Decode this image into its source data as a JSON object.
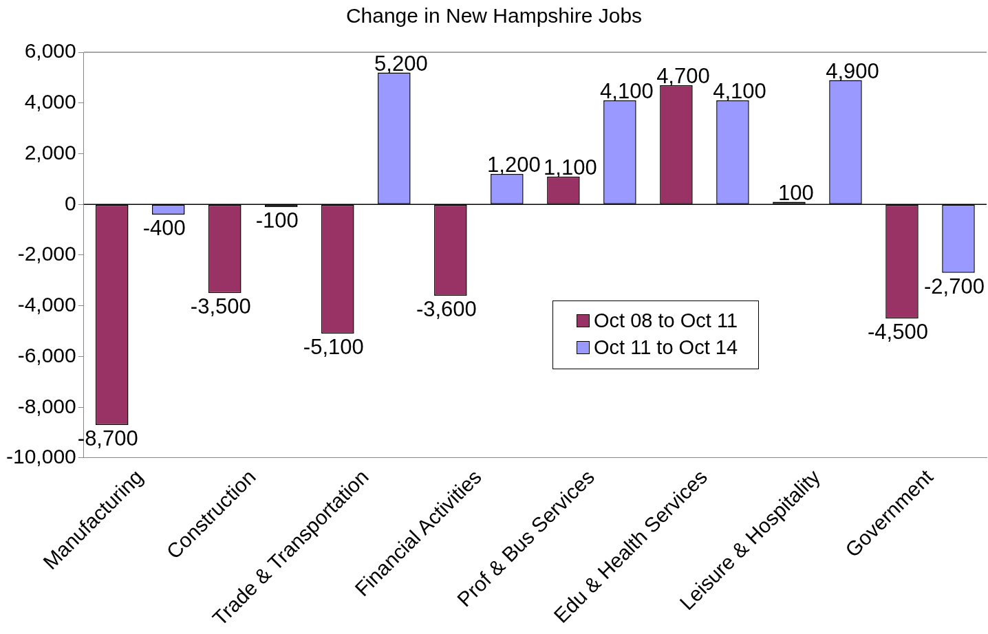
{
  "chart_data": {
    "type": "bar",
    "title": "Change in New Hampshire Jobs",
    "categories": [
      "Manufacturing",
      "Construction",
      "Trade & Transportation",
      "Financial Activities",
      "Prof & Bus Services",
      "Edu & Health Services",
      "Leisure & Hospitality",
      "Government"
    ],
    "series": [
      {
        "name": "Oct 08 to Oct 11",
        "color": "#993366",
        "values": [
          -8700,
          -3500,
          -5100,
          -3600,
          1100,
          4700,
          100,
          -4500
        ],
        "value_labels": [
          "-8,700",
          "-3,500",
          "-5,100",
          "-3,600",
          "1,100",
          "4,700",
          "100",
          "-4,500"
        ]
      },
      {
        "name": "Oct 11 to Oct 14",
        "color": "#9999ff",
        "values": [
          -400,
          -100,
          5200,
          1200,
          4100,
          4100,
          4900,
          -2700
        ],
        "value_labels": [
          "-400",
          "-100",
          "5,200",
          "1,200",
          "4,100",
          "4,100",
          "4,900",
          "-2,700"
        ]
      }
    ],
    "ylim": [
      -10000,
      6000
    ],
    "yticks": [
      {
        "value": -10000,
        "label": "-10,000"
      },
      {
        "value": -8000,
        "label": "-8,000"
      },
      {
        "value": -6000,
        "label": "-6,000"
      },
      {
        "value": -4000,
        "label": "-4,000"
      },
      {
        "value": -2000,
        "label": "-2,000"
      },
      0,
      {
        "value": 2000,
        "label": "2,000"
      },
      {
        "value": 4000,
        "label": "4,000"
      },
      {
        "value": 6000,
        "label": "6,000"
      }
    ],
    "legend": "right"
  }
}
